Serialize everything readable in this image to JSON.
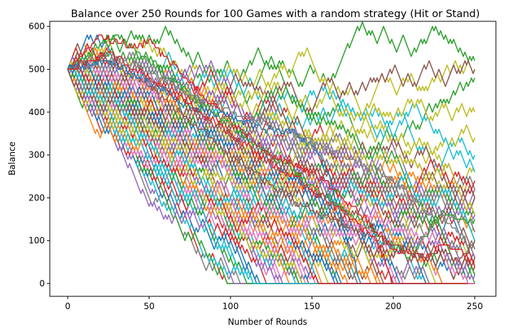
{
  "chart_data": {
    "type": "line",
    "title": "Balance over 250 Rounds for 100 Games with a random strategy (Hit or Stand)",
    "xlabel": "Number of Rounds",
    "ylabel": "Balance",
    "xlim": [
      -11,
      263
    ],
    "ylim": [
      -30,
      612
    ],
    "xticks": [
      "0",
      "50",
      "100",
      "150",
      "200",
      "250"
    ],
    "yticks": [
      "0",
      "100",
      "200",
      "300",
      "400",
      "500",
      "600"
    ],
    "grid": false,
    "legend": "none",
    "num_series": 100,
    "rounds": 250,
    "start_balance": 500,
    "bet": 10,
    "palette": [
      "#1f77b4",
      "#ff7f0e",
      "#2ca02c",
      "#d62728",
      "#9467bd",
      "#8c564b",
      "#e377c2",
      "#7f7f7f",
      "#bcbd22",
      "#17becf"
    ],
    "highlight_series": [
      {
        "name": "",
        "color": "#2ca02c",
        "x": [
          0,
          20,
          30,
          50,
          75,
          100,
          125,
          150,
          175,
          200,
          210,
          220,
          230,
          240,
          250
        ],
        "values": [
          500,
          560,
          580,
          520,
          440,
          370,
          300,
          230,
          160,
          90,
          60,
          110,
          170,
          150,
          145
        ]
      },
      {
        "name": "",
        "color": "#7f7f7f",
        "x": [
          0,
          25,
          50,
          75,
          100,
          120,
          150,
          175,
          200,
          220,
          230,
          240,
          250
        ],
        "values": [
          500,
          540,
          490,
          440,
          400,
          380,
          330,
          290,
          240,
          170,
          160,
          120,
          75
        ]
      },
      {
        "name": "",
        "color": "#d62728",
        "x": [
          0,
          20,
          40,
          50,
          75,
          100,
          125,
          150,
          175,
          200,
          210,
          220,
          230,
          240,
          250
        ],
        "values": [
          500,
          580,
          550,
          570,
          470,
          380,
          300,
          260,
          180,
          80,
          70,
          60,
          90,
          80,
          45
        ]
      },
      {
        "name": "",
        "color": "#8c564b",
        "x": [
          0,
          25,
          50,
          75,
          100,
          125,
          150,
          175,
          200,
          220,
          230,
          240,
          250
        ],
        "values": [
          500,
          520,
          460,
          380,
          300,
          230,
          170,
          130,
          90,
          60,
          80,
          50,
          100
        ]
      },
      {
        "name": "",
        "color": "#1f77b4",
        "x": [
          0,
          25,
          50,
          75,
          100,
          120,
          140,
          150,
          160,
          170,
          180
        ],
        "values": [
          500,
          520,
          470,
          410,
          390,
          360,
          350,
          320,
          260,
          120,
          0
        ]
      },
      {
        "name": "",
        "color": "#d62728",
        "x": [
          0,
          25,
          50,
          75,
          100,
          125,
          150,
          175,
          190,
          200
        ],
        "values": [
          500,
          540,
          480,
          420,
          350,
          280,
          220,
          150,
          100,
          0
        ]
      }
    ]
  }
}
